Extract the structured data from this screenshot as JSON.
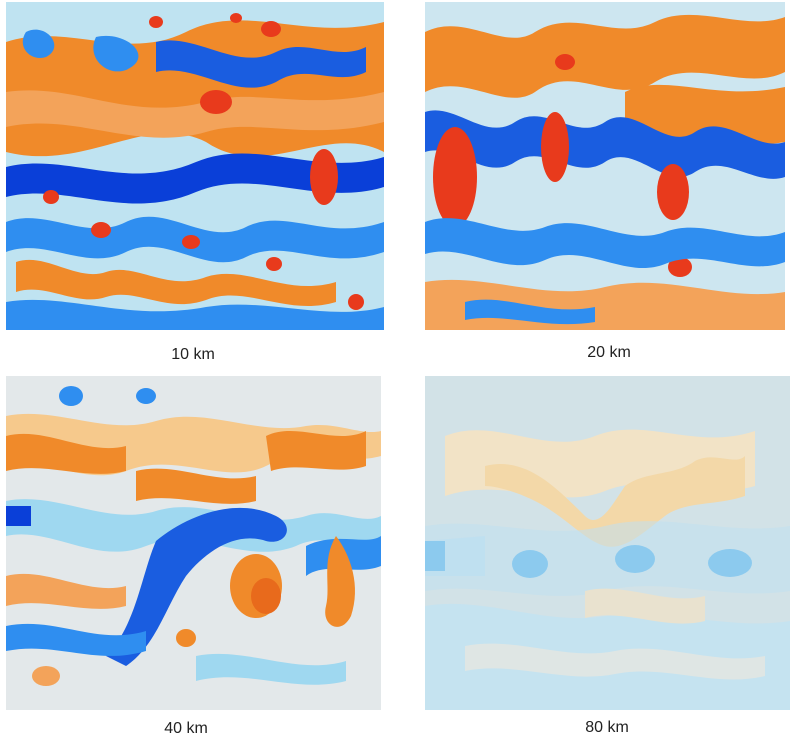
{
  "figure": {
    "panels": [
      {
        "id": "p1",
        "label": "10 km"
      },
      {
        "id": "p2",
        "label": "20 km"
      },
      {
        "id": "p3",
        "label": "40 km"
      },
      {
        "id": "p4",
        "label": "80 km"
      }
    ],
    "colormap": {
      "deep_blue": "#0a3fd8",
      "blue": "#2f8ef0",
      "light_blue": "#9fd8f0",
      "neutral": "#e6e2dc",
      "light_orange": "#f6c98c",
      "orange": "#f08a2a",
      "red": "#e83a1c"
    }
  }
}
